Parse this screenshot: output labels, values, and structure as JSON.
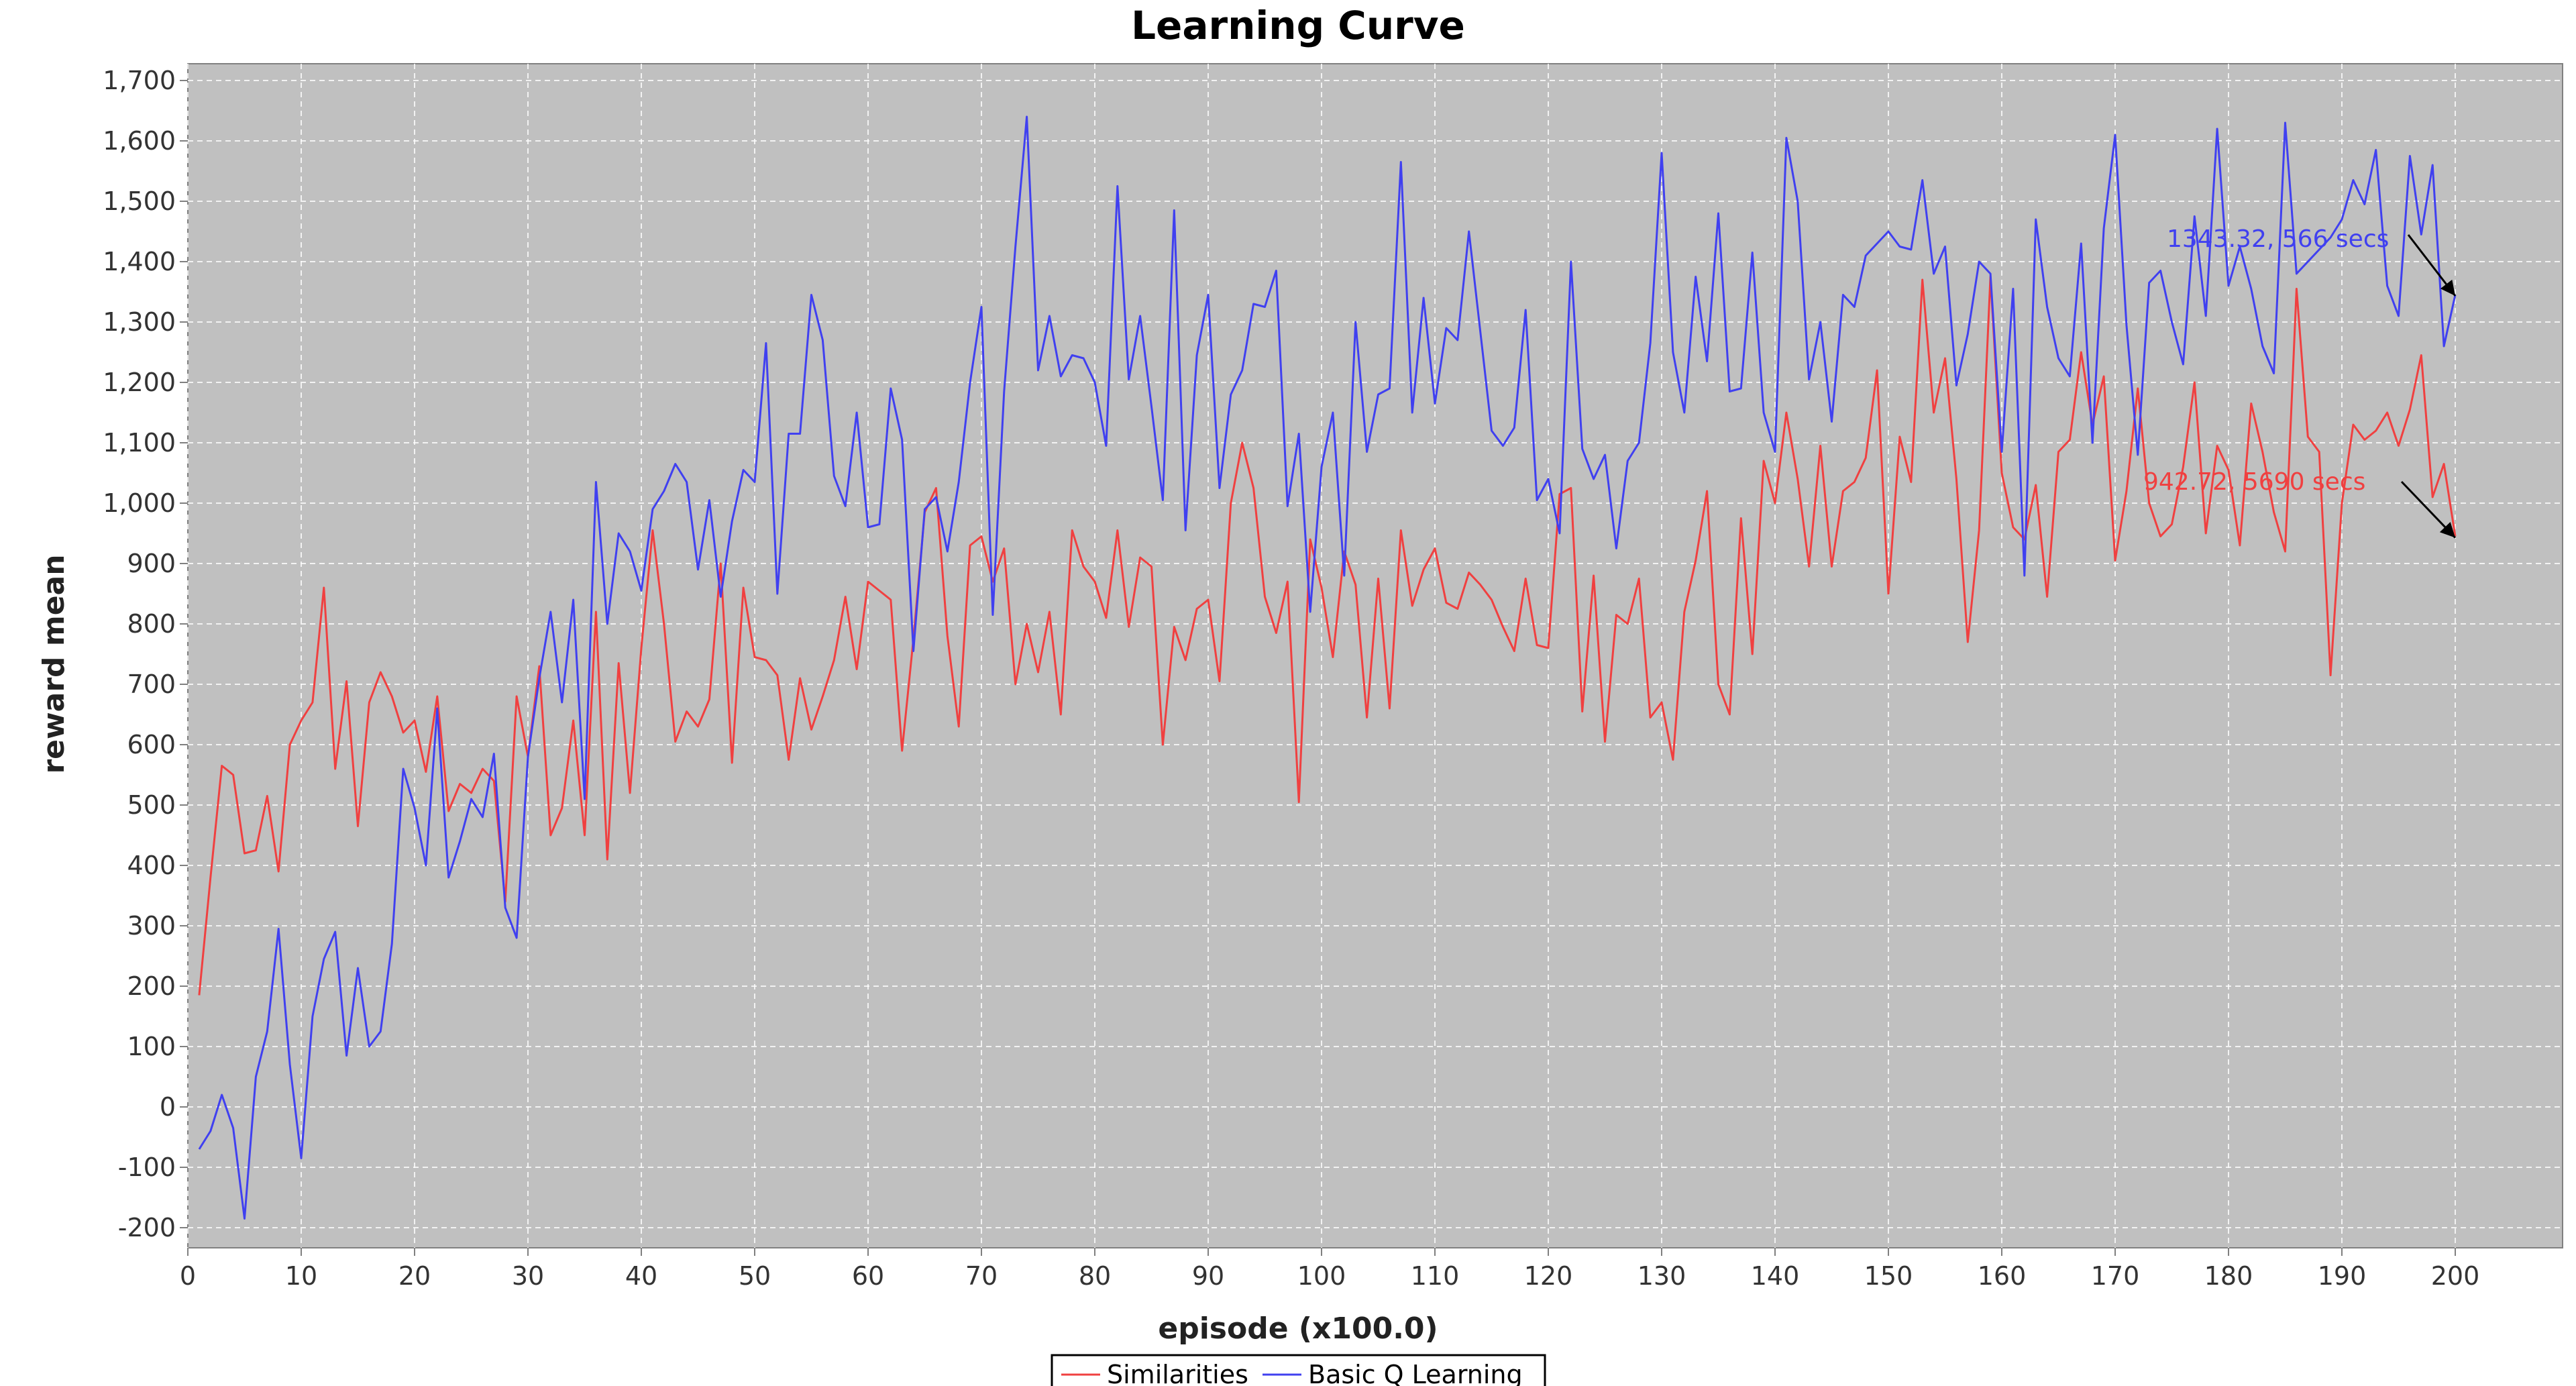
{
  "chart_data": {
    "type": "line",
    "title": "Learning Curve",
    "xlabel": "episode (x100.0)",
    "ylabel": "reward mean",
    "xlim": [
      0,
      200
    ],
    "ylim": [
      -250,
      1750
    ],
    "x_ticks": [
      0,
      10,
      20,
      30,
      40,
      50,
      60,
      70,
      80,
      90,
      100,
      110,
      120,
      130,
      140,
      150,
      160,
      170,
      180,
      190,
      200
    ],
    "y_ticks": [
      -200,
      -100,
      0,
      100,
      200,
      300,
      400,
      500,
      600,
      700,
      800,
      900,
      1000,
      1100,
      1200,
      1300,
      1400,
      1500,
      1600,
      1700
    ],
    "grid": true,
    "legend_position": "bottom-center",
    "background": "#c0c0c0",
    "series": [
      {
        "name": "Similarities",
        "color": "#f04040",
        "values": [
          185,
          380,
          565,
          550,
          420,
          425,
          515,
          390,
          600,
          640,
          670,
          860,
          560,
          705,
          465,
          670,
          720,
          680,
          620,
          640,
          555,
          680,
          490,
          535,
          520,
          560,
          540,
          340,
          680,
          580,
          730,
          450,
          495,
          640,
          450,
          820,
          410,
          735,
          520,
          760,
          955,
          800,
          605,
          655,
          630,
          675,
          900,
          570,
          860,
          745,
          740,
          715,
          575,
          710,
          625,
          680,
          740,
          845,
          725,
          870,
          855,
          840,
          590,
          775,
          985,
          1025,
          780,
          630,
          930,
          945,
          870,
          925,
          700,
          800,
          720,
          820,
          650,
          955,
          895,
          870,
          810,
          955,
          795,
          910,
          895,
          600,
          795,
          740,
          825,
          840,
          705,
          1000,
          1100,
          1025,
          845,
          785,
          870,
          505,
          940,
          860,
          745,
          920,
          865,
          645,
          875,
          660,
          955,
          830,
          890,
          925,
          835,
          825,
          885,
          865,
          840,
          795,
          755,
          875,
          765,
          760,
          1015,
          1025,
          655,
          880,
          605,
          815,
          800,
          875,
          645,
          670,
          575,
          820,
          905,
          1020,
          700,
          650,
          975,
          750,
          1070,
          1000,
          1150,
          1040,
          895,
          1095,
          895,
          1020,
          1035,
          1075,
          1220,
          850,
          1110,
          1035,
          1370,
          1150,
          1240,
          1040,
          770,
          955,
          1375,
          1050,
          960,
          940,
          1030,
          845,
          1085,
          1105,
          1250,
          1130,
          1210,
          905,
          1020,
          1190,
          1000,
          945,
          965,
          1060,
          1200,
          950,
          1095,
          1055,
          930,
          1165,
          1085,
          985,
          920,
          1355,
          1110,
          1085,
          715,
          1000,
          1130,
          1105,
          1120,
          1150,
          1095,
          1155,
          1245,
          1010,
          1065,
          945
        ]
      },
      {
        "name": "Basic Q Learning",
        "color": "#4040f0",
        "values": [
          -70,
          -40,
          20,
          -35,
          -185,
          50,
          125,
          295,
          70,
          -85,
          150,
          245,
          290,
          85,
          230,
          100,
          125,
          270,
          560,
          495,
          400,
          660,
          380,
          440,
          510,
          480,
          585,
          330,
          280,
          580,
          710,
          820,
          670,
          840,
          510,
          1035,
          800,
          950,
          920,
          855,
          990,
          1020,
          1065,
          1035,
          890,
          1005,
          845,
          970,
          1055,
          1035,
          1265,
          850,
          1115,
          1115,
          1345,
          1270,
          1045,
          995,
          1150,
          960,
          965,
          1190,
          1105,
          755,
          990,
          1010,
          920,
          1035,
          1200,
          1325,
          815,
          1185,
          1425,
          1640,
          1220,
          1310,
          1210,
          1245,
          1240,
          1200,
          1095,
          1525,
          1205,
          1310,
          1160,
          1005,
          1485,
          955,
          1245,
          1345,
          1025,
          1180,
          1220,
          1330,
          1325,
          1385,
          995,
          1115,
          820,
          1060,
          1150,
          880,
          1300,
          1085,
          1180,
          1190,
          1565,
          1150,
          1340,
          1165,
          1290,
          1270,
          1450,
          1285,
          1120,
          1095,
          1125,
          1320,
          1005,
          1040,
          950,
          1400,
          1090,
          1040,
          1080,
          925,
          1070,
          1100,
          1265,
          1580,
          1250,
          1150,
          1375,
          1235,
          1480,
          1185,
          1190,
          1415,
          1150,
          1085,
          1605,
          1500,
          1205,
          1300,
          1135,
          1345,
          1325,
          1410,
          1430,
          1450,
          1425,
          1420,
          1535,
          1380,
          1425,
          1195,
          1280,
          1400,
          1380,
          1085,
          1355,
          880,
          1470,
          1325,
          1240,
          1210,
          1430,
          1100,
          1455,
          1610,
          1295,
          1080,
          1365,
          1385,
          1300,
          1230,
          1475,
          1310,
          1620,
          1360,
          1425,
          1355,
          1260,
          1215,
          1630,
          1380,
          1400,
          1420,
          1440,
          1470,
          1535,
          1495,
          1585,
          1360,
          1310,
          1575,
          1445,
          1560,
          1260,
          1345
        ]
      }
    ],
    "annotations": [
      {
        "text": "1343.32, 566 secs",
        "series": "Basic Q Learning",
        "x": 200,
        "y": 1343.32,
        "color": "#4040f0"
      },
      {
        "text": "942.72, 5690 secs",
        "series": "Similarities",
        "x": 200,
        "y": 942.72,
        "color": "#f04040"
      }
    ]
  }
}
